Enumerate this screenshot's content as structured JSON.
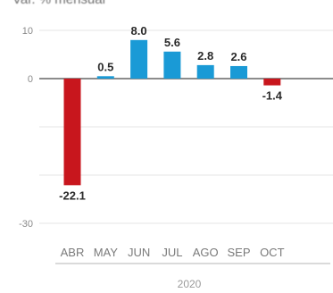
{
  "title": "Var. % mensual",
  "chart_data": {
    "type": "bar",
    "categories": [
      "ABR",
      "MAY",
      "JUN",
      "JUL",
      "AGO",
      "SEP",
      "OCT"
    ],
    "values": [
      -22.1,
      0.5,
      8.0,
      5.6,
      2.8,
      2.6,
      -1.4
    ],
    "value_labels": [
      "-22.1",
      "0.5",
      "8.0",
      "5.6",
      "2.8",
      "2.6",
      "-1.4"
    ],
    "y_ticks": [
      10,
      0,
      -30
    ],
    "y_tick_labels": [
      "10",
      "0",
      "-30"
    ],
    "ylim": [
      -30,
      10
    ],
    "group_label": "2020",
    "grid": true,
    "colors": {
      "positive": "#1a9ad6",
      "negative": "#c8161d",
      "axis": "#666666",
      "grid": "#e6e6e6"
    }
  }
}
